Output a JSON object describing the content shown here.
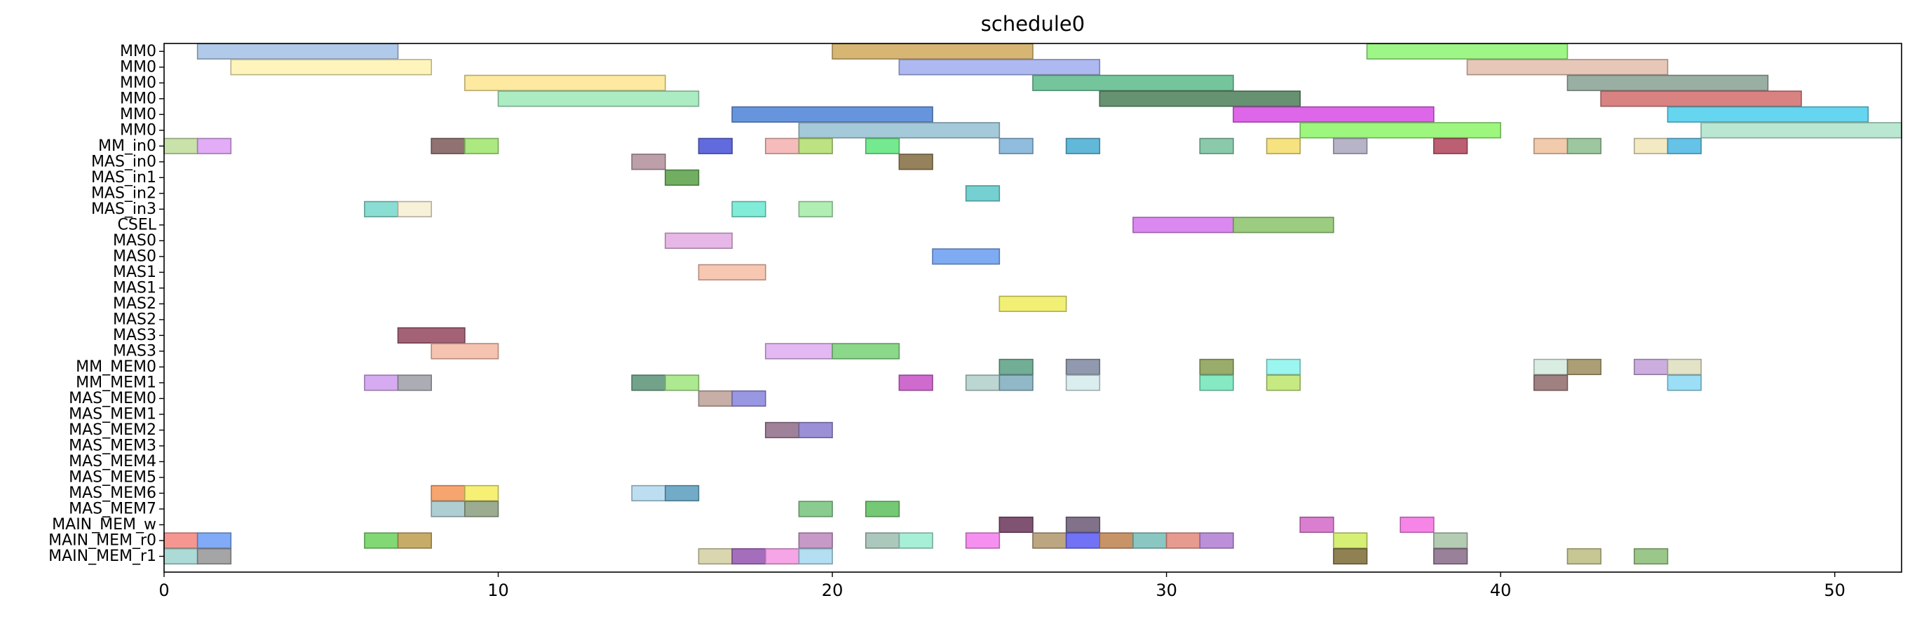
{
  "chart_data": {
    "type": "gantt",
    "title": "schedule0",
    "xlabel": "",
    "ylabel": "",
    "xlim": [
      0,
      52
    ],
    "x_ticks": [
      0,
      10,
      20,
      30,
      40,
      50
    ],
    "grid": false,
    "legend": "none",
    "rows": [
      "MM0",
      "MM0",
      "MM0",
      "MM0",
      "MM0",
      "MM0",
      "MM_in0",
      "MAS_in0",
      "MAS_in1",
      "MAS_in2",
      "MAS_in3",
      "CSEL",
      "MAS0",
      "MAS0",
      "MAS1",
      "MAS1",
      "MAS2",
      "MAS2",
      "MAS3",
      "MAS3",
      "MM_MEM0",
      "MM_MEM1",
      "MAS_MEM0",
      "MAS_MEM1",
      "MAS_MEM2",
      "MAS_MEM3",
      "MAS_MEM4",
      "MAS_MEM5",
      "MAS_MEM6",
      "MAS_MEM7",
      "MAIN_MEM_w",
      "MAIN_MEM_r0",
      "MAIN_MEM_r1"
    ],
    "tasks": [
      {
        "row": 0,
        "start": 1,
        "end": 7,
        "color": "#aec7e8"
      },
      {
        "row": 0,
        "start": 20,
        "end": 26,
        "color": "#d4b26a"
      },
      {
        "row": 0,
        "start": 36,
        "end": 42,
        "color": "#98f57e"
      },
      {
        "row": 1,
        "start": 2,
        "end": 8,
        "color": "#fff4b8"
      },
      {
        "row": 1,
        "start": 22,
        "end": 28,
        "color": "#aab4f0"
      },
      {
        "row": 1,
        "start": 39,
        "end": 45,
        "color": "#e6c4b4"
      },
      {
        "row": 2,
        "start": 9,
        "end": 15,
        "color": "#fde89a"
      },
      {
        "row": 2,
        "start": 26,
        "end": 32,
        "color": "#6ec297"
      },
      {
        "row": 2,
        "start": 42,
        "end": 48,
        "color": "#94ab9e"
      },
      {
        "row": 3,
        "start": 10,
        "end": 16,
        "color": "#a8ebc0"
      },
      {
        "row": 3,
        "start": 28,
        "end": 34,
        "color": "#5e8c6a"
      },
      {
        "row": 3,
        "start": 43,
        "end": 49,
        "color": "#d77b7b"
      },
      {
        "row": 4,
        "start": 17,
        "end": 23,
        "color": "#5f8fdb"
      },
      {
        "row": 4,
        "start": 32,
        "end": 38,
        "color": "#db5ee8"
      },
      {
        "row": 4,
        "start": 45,
        "end": 51,
        "color": "#5dd3ef"
      },
      {
        "row": 5,
        "start": 19,
        "end": 25,
        "color": "#9fc6d6"
      },
      {
        "row": 5,
        "start": 34,
        "end": 40,
        "color": "#98f577"
      },
      {
        "row": 5,
        "start": 46,
        "end": 52,
        "color": "#b5e6d0"
      },
      {
        "row": 6,
        "start": 0,
        "end": 1,
        "color": "#c5e0a5"
      },
      {
        "row": 6,
        "start": 1,
        "end": 2,
        "color": "#e0a8f5"
      },
      {
        "row": 6,
        "start": 8,
        "end": 9,
        "color": "#8a6a6a"
      },
      {
        "row": 6,
        "start": 9,
        "end": 10,
        "color": "#a8e87a"
      },
      {
        "row": 6,
        "start": 16,
        "end": 17,
        "color": "#5a63db"
      },
      {
        "row": 6,
        "start": 18,
        "end": 19,
        "color": "#f5b8b8"
      },
      {
        "row": 6,
        "start": 19,
        "end": 20,
        "color": "#b8e07a"
      },
      {
        "row": 6,
        "start": 21,
        "end": 22,
        "color": "#6ee88a"
      },
      {
        "row": 6,
        "start": 25,
        "end": 26,
        "color": "#8ab8db"
      },
      {
        "row": 6,
        "start": 27,
        "end": 28,
        "color": "#5ab4d6"
      },
      {
        "row": 6,
        "start": 31,
        "end": 32,
        "color": "#84c7a6"
      },
      {
        "row": 6,
        "start": 33,
        "end": 34,
        "color": "#f5e07a"
      },
      {
        "row": 6,
        "start": 35,
        "end": 36,
        "color": "#b4b0c4"
      },
      {
        "row": 6,
        "start": 38,
        "end": 39,
        "color": "#b8566a"
      },
      {
        "row": 6,
        "start": 41,
        "end": 42,
        "color": "#f0c8a8"
      },
      {
        "row": 6,
        "start": 42,
        "end": 43,
        "color": "#98c499"
      },
      {
        "row": 6,
        "start": 44,
        "end": 45,
        "color": "#f2e8c0"
      },
      {
        "row": 6,
        "start": 45,
        "end": 46,
        "color": "#5ec0e6"
      },
      {
        "row": 7,
        "start": 14,
        "end": 15,
        "color": "#b89aa4"
      },
      {
        "row": 7,
        "start": 22,
        "end": 23,
        "color": "#8f7a52"
      },
      {
        "row": 8,
        "start": 15,
        "end": 16,
        "color": "#6aaa5a"
      },
      {
        "row": 9,
        "start": 24,
        "end": 25,
        "color": "#6ecfcf"
      },
      {
        "row": 10,
        "start": 6,
        "end": 7,
        "color": "#84dbd0"
      },
      {
        "row": 10,
        "start": 7,
        "end": 8,
        "color": "#f7f0d8"
      },
      {
        "row": 10,
        "start": 17,
        "end": 18,
        "color": "#7aebd6"
      },
      {
        "row": 10,
        "start": 19,
        "end": 20,
        "color": "#acedb0"
      },
      {
        "row": 11,
        "start": 29,
        "end": 32,
        "color": "#d783ee"
      },
      {
        "row": 11,
        "start": 32,
        "end": 35,
        "color": "#96c978"
      },
      {
        "row": 12,
        "start": 15,
        "end": 17,
        "color": "#e6b4e6"
      },
      {
        "row": 13,
        "start": 23,
        "end": 25,
        "color": "#78a6f2"
      },
      {
        "row": 14,
        "start": 16,
        "end": 18,
        "color": "#f7c4ae"
      },
      {
        "row": 16,
        "start": 25,
        "end": 27,
        "color": "#f0ef6e"
      },
      {
        "row": 18,
        "start": 7,
        "end": 9,
        "color": "#9e5a6e"
      },
      {
        "row": 19,
        "start": 8,
        "end": 10,
        "color": "#f5c0ac"
      },
      {
        "row": 19,
        "start": 18,
        "end": 20,
        "color": "#e2b4f2"
      },
      {
        "row": 19,
        "start": 20,
        "end": 22,
        "color": "#85d685"
      },
      {
        "row": 20,
        "start": 25,
        "end": 26,
        "color": "#6aaa8f"
      },
      {
        "row": 20,
        "start": 27,
        "end": 28,
        "color": "#8a93aa"
      },
      {
        "row": 20,
        "start": 31,
        "end": 32,
        "color": "#94a862"
      },
      {
        "row": 20,
        "start": 33,
        "end": 34,
        "color": "#96f5ef"
      },
      {
        "row": 20,
        "start": 41,
        "end": 42,
        "color": "#d8ece0"
      },
      {
        "row": 20,
        "start": 42,
        "end": 43,
        "color": "#a89a6e"
      },
      {
        "row": 20,
        "start": 44,
        "end": 45,
        "color": "#c8aadc"
      },
      {
        "row": 20,
        "start": 45,
        "end": 46,
        "color": "#e2e2c4"
      },
      {
        "row": 21,
        "start": 6,
        "end": 7,
        "color": "#d4a6f0"
      },
      {
        "row": 21,
        "start": 7,
        "end": 8,
        "color": "#a8a8b0"
      },
      {
        "row": 21,
        "start": 14,
        "end": 15,
        "color": "#6a9e84"
      },
      {
        "row": 21,
        "start": 15,
        "end": 16,
        "color": "#a8e88a"
      },
      {
        "row": 21,
        "start": 22,
        "end": 23,
        "color": "#cc62cc"
      },
      {
        "row": 21,
        "start": 24,
        "end": 25,
        "color": "#b8d4cf"
      },
      {
        "row": 21,
        "start": 25,
        "end": 26,
        "color": "#8ab4c4"
      },
      {
        "row": 21,
        "start": 27,
        "end": 28,
        "color": "#d8ecee"
      },
      {
        "row": 21,
        "start": 31,
        "end": 32,
        "color": "#7ee8c0"
      },
      {
        "row": 21,
        "start": 33,
        "end": 34,
        "color": "#c4e87a"
      },
      {
        "row": 21,
        "start": 41,
        "end": 42,
        "color": "#9a7a7a"
      },
      {
        "row": 21,
        "start": 45,
        "end": 46,
        "color": "#96dcf5"
      },
      {
        "row": 22,
        "start": 16,
        "end": 17,
        "color": "#c4aaa2"
      },
      {
        "row": 22,
        "start": 17,
        "end": 18,
        "color": "#9390e0"
      },
      {
        "row": 24,
        "start": 18,
        "end": 19,
        "color": "#9a7a94"
      },
      {
        "row": 24,
        "start": 19,
        "end": 20,
        "color": "#968ad4"
      },
      {
        "row": 28,
        "start": 8,
        "end": 9,
        "color": "#f7a066"
      },
      {
        "row": 28,
        "start": 9,
        "end": 10,
        "color": "#f5f06e"
      },
      {
        "row": 28,
        "start": 14,
        "end": 15,
        "color": "#b8dcef"
      },
      {
        "row": 28,
        "start": 15,
        "end": 16,
        "color": "#6aa6c4"
      },
      {
        "row": 29,
        "start": 8,
        "end": 9,
        "color": "#aacbd0"
      },
      {
        "row": 29,
        "start": 9,
        "end": 10,
        "color": "#96a88a"
      },
      {
        "row": 29,
        "start": 19,
        "end": 20,
        "color": "#84c98a"
      },
      {
        "row": 29,
        "start": 21,
        "end": 22,
        "color": "#6ec66e"
      },
      {
        "row": 30,
        "start": 25,
        "end": 26,
        "color": "#7a4a6a"
      },
      {
        "row": 30,
        "start": 27,
        "end": 28,
        "color": "#7a6a84"
      },
      {
        "row": 30,
        "start": 34,
        "end": 35,
        "color": "#d878cc"
      },
      {
        "row": 30,
        "start": 37,
        "end": 38,
        "color": "#f57ee6"
      },
      {
        "row": 31,
        "start": 0,
        "end": 1,
        "color": "#f5908a"
      },
      {
        "row": 31,
        "start": 1,
        "end": 2,
        "color": "#7aa6f5"
      },
      {
        "row": 31,
        "start": 6,
        "end": 7,
        "color": "#7ad66e"
      },
      {
        "row": 31,
        "start": 7,
        "end": 8,
        "color": "#c4a860"
      },
      {
        "row": 31,
        "start": 19,
        "end": 20,
        "color": "#c494c4"
      },
      {
        "row": 31,
        "start": 21,
        "end": 22,
        "color": "#a8c4b8"
      },
      {
        "row": 31,
        "start": 22,
        "end": 23,
        "color": "#a2eed4"
      },
      {
        "row": 31,
        "start": 24,
        "end": 25,
        "color": "#f58aef"
      },
      {
        "row": 31,
        "start": 26,
        "end": 27,
        "color": "#b8a07a"
      },
      {
        "row": 31,
        "start": 27,
        "end": 28,
        "color": "#6a6af5"
      },
      {
        "row": 31,
        "start": 28,
        "end": 29,
        "color": "#c48e60"
      },
      {
        "row": 31,
        "start": 29,
        "end": 30,
        "color": "#84c4c0"
      },
      {
        "row": 31,
        "start": 30,
        "end": 31,
        "color": "#e6968a"
      },
      {
        "row": 31,
        "start": 31,
        "end": 32,
        "color": "#b88ad6"
      },
      {
        "row": 31,
        "start": 35,
        "end": 36,
        "color": "#d4ee6e"
      },
      {
        "row": 31,
        "start": 38,
        "end": 39,
        "color": "#b0c8b0"
      },
      {
        "row": 32,
        "start": 0,
        "end": 1,
        "color": "#a8d8d4"
      },
      {
        "row": 32,
        "start": 1,
        "end": 2,
        "color": "#a0a0a0"
      },
      {
        "row": 32,
        "start": 16,
        "end": 17,
        "color": "#d8d4ac"
      },
      {
        "row": 32,
        "start": 17,
        "end": 18,
        "color": "#a066b8"
      },
      {
        "row": 32,
        "start": 18,
        "end": 19,
        "color": "#f5a0e6"
      },
      {
        "row": 32,
        "start": 19,
        "end": 20,
        "color": "#b0dcf0"
      },
      {
        "row": 32,
        "start": 35,
        "end": 36,
        "color": "#8a7a4a"
      },
      {
        "row": 32,
        "start": 38,
        "end": 39,
        "color": "#947a94"
      },
      {
        "row": 32,
        "start": 42,
        "end": 43,
        "color": "#c4c48e"
      },
      {
        "row": 32,
        "start": 44,
        "end": 45,
        "color": "#96c484"
      }
    ]
  }
}
